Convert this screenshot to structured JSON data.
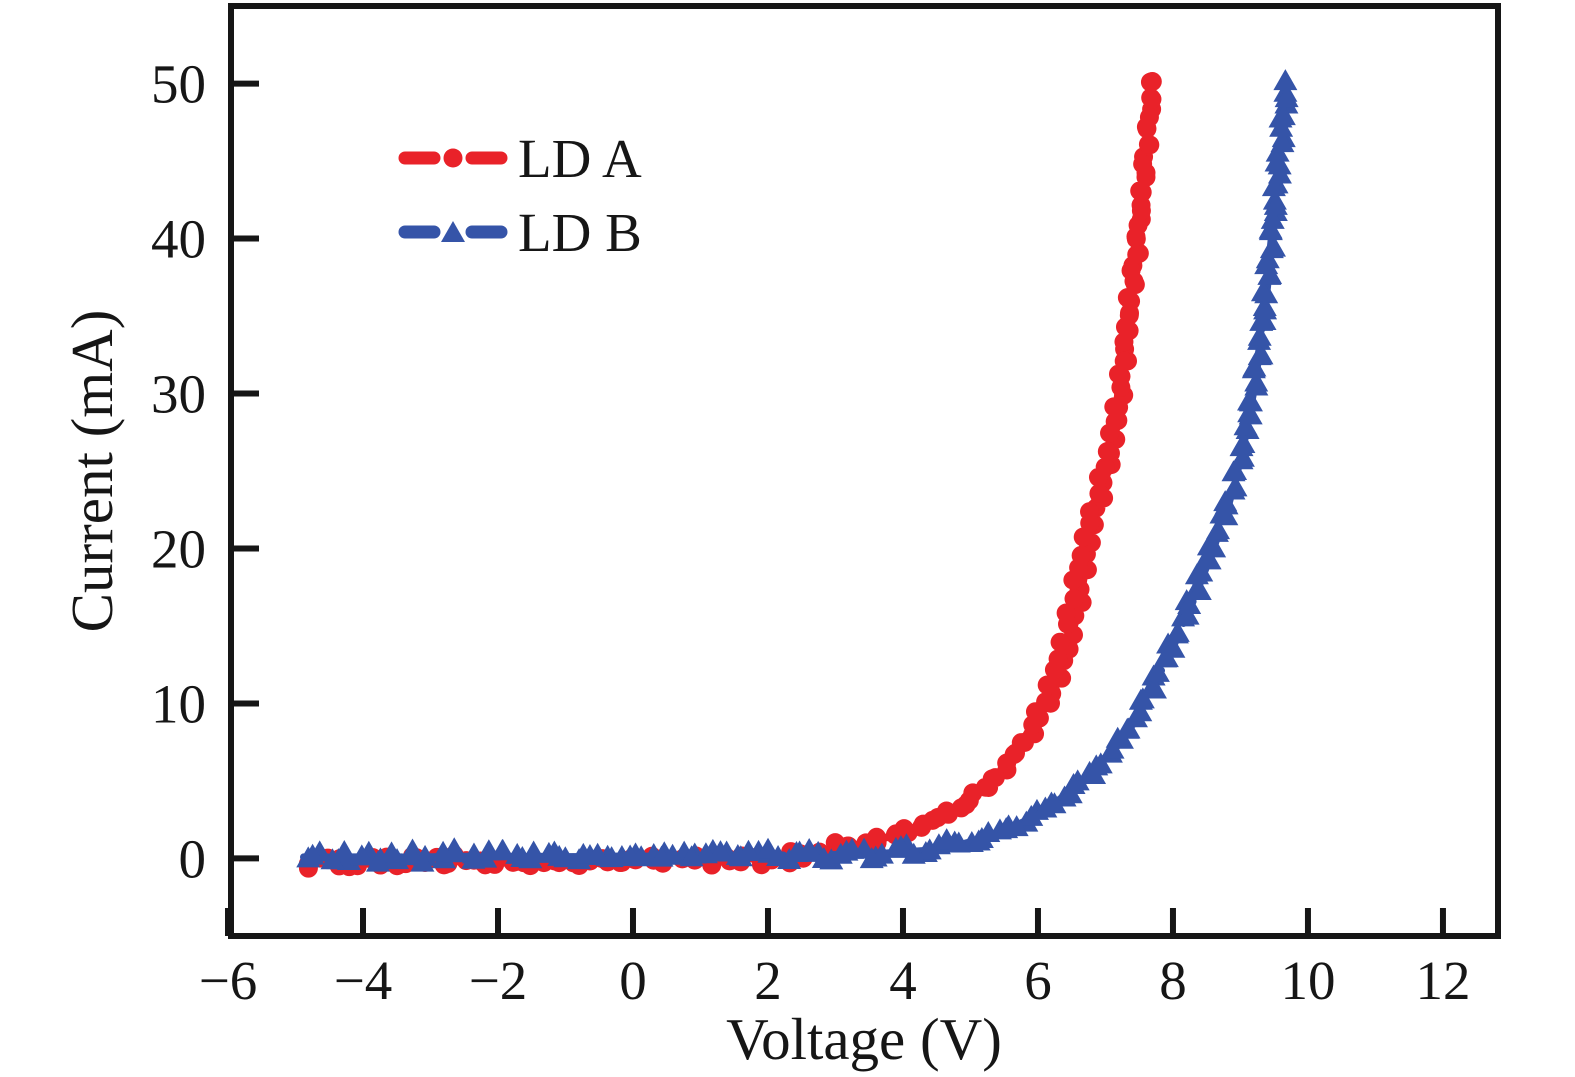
{
  "chart_data": {
    "type": "scatter",
    "title": "",
    "xlabel": "Voltage (V)",
    "ylabel": "Current (mA)",
    "xlim": [
      -6,
      12.86
    ],
    "ylim": [
      -5.2,
      55.2
    ],
    "x_ticks": [
      -6,
      -4,
      -2,
      0,
      2,
      4,
      6,
      8,
      10,
      12
    ],
    "y_ticks": [
      0,
      10,
      20,
      30,
      40,
      50
    ],
    "grid": false,
    "legend_position": "upper-left-inside",
    "frame_color": "#161616",
    "series": [
      {
        "name": "LD A",
        "color": "#e92229",
        "marker": "circle",
        "line_style": "dashed",
        "points": [
          [
            -4.88,
            -0.2
          ],
          [
            -4.5,
            -0.2
          ],
          [
            -4.0,
            -0.25
          ],
          [
            -3.5,
            -0.2
          ],
          [
            -3.0,
            -0.25
          ],
          [
            -2.5,
            -0.2
          ],
          [
            -2.0,
            -0.25
          ],
          [
            -1.5,
            -0.2
          ],
          [
            -1.0,
            -0.2
          ],
          [
            -0.5,
            -0.15
          ],
          [
            0.0,
            -0.15
          ],
          [
            0.5,
            -0.1
          ],
          [
            1.0,
            -0.1
          ],
          [
            1.5,
            -0.05
          ],
          [
            2.0,
            0.0
          ],
          [
            2.4,
            0.15
          ],
          [
            2.8,
            0.4
          ],
          [
            3.2,
            0.7
          ],
          [
            3.6,
            1.1
          ],
          [
            4.0,
            1.7
          ],
          [
            4.4,
            2.4
          ],
          [
            4.8,
            3.2
          ],
          [
            5.1,
            4.1
          ],
          [
            5.4,
            5.3
          ],
          [
            5.7,
            6.8
          ],
          [
            6.0,
            8.6
          ],
          [
            6.2,
            10.3
          ],
          [
            6.4,
            12.6
          ],
          [
            6.6,
            16.0
          ],
          [
            6.75,
            19.8
          ],
          [
            6.85,
            22.0
          ],
          [
            7.0,
            24.3
          ],
          [
            7.1,
            26.2
          ],
          [
            7.2,
            28.6
          ],
          [
            7.28,
            31.5
          ],
          [
            7.35,
            34.8
          ],
          [
            7.43,
            37.6
          ],
          [
            7.5,
            40.6
          ],
          [
            7.56,
            43.4
          ],
          [
            7.62,
            46.2
          ],
          [
            7.66,
            48.2
          ],
          [
            7.7,
            50.2
          ]
        ],
        "points_return": [
          [
            7.7,
            50.2
          ],
          [
            7.63,
            47.0
          ],
          [
            7.57,
            44.2
          ],
          [
            7.5,
            41.4
          ],
          [
            7.42,
            38.3
          ],
          [
            7.33,
            35.2
          ],
          [
            7.25,
            32.0
          ],
          [
            7.15,
            29.0
          ],
          [
            7.03,
            26.3
          ],
          [
            6.9,
            24.0
          ],
          [
            6.75,
            21.8
          ],
          [
            6.6,
            19.0
          ],
          [
            6.42,
            15.2
          ],
          [
            6.22,
            11.8
          ],
          [
            6.0,
            9.4
          ],
          [
            5.75,
            7.4
          ],
          [
            5.5,
            5.8
          ],
          [
            5.2,
            4.5
          ],
          [
            4.9,
            3.5
          ],
          [
            4.55,
            2.6
          ],
          [
            4.15,
            1.9
          ],
          [
            3.7,
            1.3
          ],
          [
            3.2,
            0.8
          ],
          [
            2.7,
            0.4
          ],
          [
            2.2,
            0.1
          ],
          [
            1.7,
            -0.05
          ],
          [
            1.0,
            -0.1
          ],
          [
            0.3,
            -0.15
          ],
          [
            -0.5,
            -0.2
          ],
          [
            -1.3,
            -0.15
          ],
          [
            -2.2,
            -0.2
          ],
          [
            -3.0,
            -0.15
          ],
          [
            -3.8,
            -0.2
          ],
          [
            -4.5,
            -0.15
          ],
          [
            -4.88,
            -0.2
          ]
        ]
      },
      {
        "name": "LD B",
        "color": "#3554a8",
        "marker": "triangle",
        "line_style": "dashed",
        "points": [
          [
            -4.88,
            0.1
          ],
          [
            -4.4,
            0.1
          ],
          [
            -4.0,
            0.05
          ],
          [
            -3.5,
            0.1
          ],
          [
            -3.0,
            0.05
          ],
          [
            -2.5,
            0.1
          ],
          [
            -2.0,
            0.1
          ],
          [
            -1.5,
            0.15
          ],
          [
            -1.0,
            0.1
          ],
          [
            -0.5,
            0.1
          ],
          [
            0.0,
            0.15
          ],
          [
            0.5,
            0.15
          ],
          [
            1.0,
            0.2
          ],
          [
            1.5,
            0.2
          ],
          [
            2.0,
            0.2
          ],
          [
            2.5,
            0.25
          ],
          [
            3.0,
            0.25
          ],
          [
            3.4,
            0.3
          ],
          [
            3.8,
            0.35
          ],
          [
            4.2,
            0.45
          ],
          [
            4.6,
            0.65
          ],
          [
            5.0,
            1.0
          ],
          [
            5.4,
            1.6
          ],
          [
            5.8,
            2.4
          ],
          [
            6.2,
            3.4
          ],
          [
            6.6,
            4.8
          ],
          [
            6.9,
            6.0
          ],
          [
            7.2,
            7.5
          ],
          [
            7.5,
            9.5
          ],
          [
            7.8,
            12.3
          ],
          [
            8.1,
            15.0
          ],
          [
            8.35,
            17.8
          ],
          [
            8.6,
            20.6
          ],
          [
            8.85,
            23.6
          ],
          [
            9.0,
            25.7
          ],
          [
            9.1,
            27.8
          ],
          [
            9.2,
            30.2
          ],
          [
            9.3,
            33.2
          ],
          [
            9.38,
            36.0
          ],
          [
            9.45,
            39.0
          ],
          [
            9.51,
            42.0
          ],
          [
            9.56,
            44.5
          ],
          [
            9.61,
            46.8
          ],
          [
            9.66,
            48.8
          ],
          [
            9.7,
            50.2
          ]
        ],
        "points_return": [
          [
            9.7,
            50.2
          ],
          [
            9.63,
            47.5
          ],
          [
            9.57,
            45.0
          ],
          [
            9.51,
            42.4
          ],
          [
            9.44,
            39.3
          ],
          [
            9.36,
            36.2
          ],
          [
            9.28,
            33.0
          ],
          [
            9.18,
            30.0
          ],
          [
            9.07,
            27.2
          ],
          [
            8.95,
            24.8
          ],
          [
            8.8,
            22.4
          ],
          [
            8.55,
            19.4
          ],
          [
            8.3,
            16.6
          ],
          [
            8.0,
            13.6
          ],
          [
            7.7,
            11.0
          ],
          [
            7.4,
            8.6
          ],
          [
            7.1,
            6.8
          ],
          [
            6.8,
            5.4
          ],
          [
            6.45,
            4.1
          ],
          [
            6.05,
            2.9
          ],
          [
            5.65,
            2.0
          ],
          [
            5.2,
            1.3
          ],
          [
            4.8,
            0.85
          ],
          [
            4.4,
            0.55
          ],
          [
            4.0,
            0.4
          ],
          [
            3.5,
            0.3
          ],
          [
            3.0,
            0.25
          ],
          [
            2.4,
            0.2
          ],
          [
            1.8,
            0.2
          ],
          [
            1.2,
            0.15
          ],
          [
            0.5,
            0.1
          ],
          [
            -0.3,
            0.15
          ],
          [
            -1.2,
            0.1
          ],
          [
            -2.2,
            0.15
          ],
          [
            -3.2,
            0.1
          ],
          [
            -4.2,
            0.1
          ],
          [
            -4.88,
            0.05
          ]
        ]
      }
    ]
  }
}
